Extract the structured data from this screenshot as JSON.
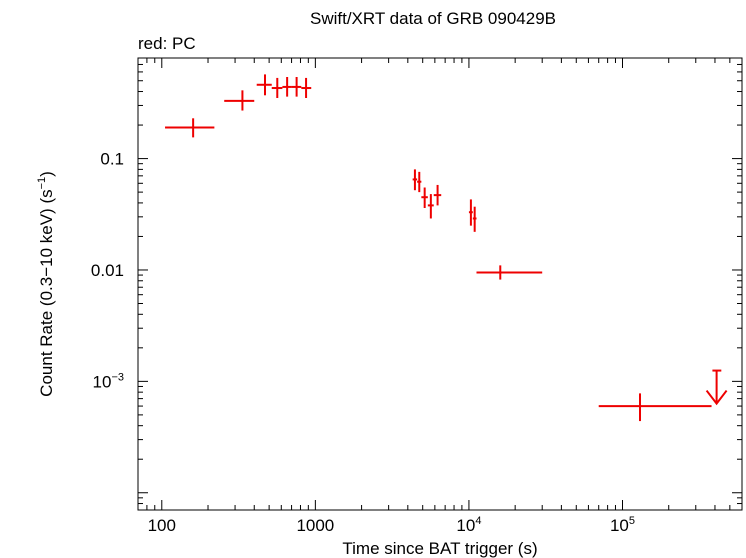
{
  "chart_data": {
    "type": "scatter",
    "title": "Swift/XRT data of GRB 090429B",
    "subtitle": "red: PC",
    "xlabel": "Time since BAT trigger (s)",
    "ylabel": "Count Rate (0.3−10 keV) (s",
    "ylabel_sup": "−1",
    "ylabel_end": ")",
    "x_scale": "log",
    "y_scale": "log",
    "xlim": [
      70,
      600000
    ],
    "ylim": [
      7e-05,
      0.8
    ],
    "x_ticks": [
      {
        "value": 100,
        "base": "100",
        "sup": ""
      },
      {
        "value": 1000,
        "base": "1000",
        "sup": ""
      },
      {
        "value": 10000,
        "base": "10",
        "sup": "4"
      },
      {
        "value": 100000,
        "base": "10",
        "sup": "5"
      }
    ],
    "y_ticks": [
      {
        "value": 0.1,
        "base": "0.1",
        "sup": ""
      },
      {
        "value": 0.01,
        "base": "0.01",
        "sup": ""
      },
      {
        "value": 0.001,
        "base": "10",
        "sup": "−3"
      }
    ],
    "series_color": "#ee0000",
    "series": [
      {
        "points": [
          {
            "x": 160,
            "xlo": 105,
            "xhi": 220,
            "y": 0.19,
            "ylo": 0.155,
            "yhi": 0.23
          },
          {
            "x": 335,
            "xlo": 255,
            "xhi": 400,
            "y": 0.33,
            "ylo": 0.27,
            "yhi": 0.41
          },
          {
            "x": 470,
            "xlo": 415,
            "xhi": 520,
            "y": 0.46,
            "ylo": 0.37,
            "yhi": 0.57
          },
          {
            "x": 565,
            "xlo": 520,
            "xhi": 610,
            "y": 0.43,
            "ylo": 0.35,
            "yhi": 0.53
          },
          {
            "x": 655,
            "xlo": 610,
            "xhi": 700,
            "y": 0.44,
            "ylo": 0.36,
            "yhi": 0.54
          },
          {
            "x": 755,
            "xlo": 700,
            "xhi": 810,
            "y": 0.44,
            "ylo": 0.36,
            "yhi": 0.54
          },
          {
            "x": 870,
            "xlo": 810,
            "xhi": 940,
            "y": 0.43,
            "ylo": 0.35,
            "yhi": 0.53
          },
          {
            "x": 4450,
            "xlo": 4300,
            "xhi": 4600,
            "y": 0.065,
            "ylo": 0.052,
            "yhi": 0.08
          },
          {
            "x": 4750,
            "xlo": 4600,
            "xhi": 4900,
            "y": 0.062,
            "ylo": 0.05,
            "yhi": 0.076
          },
          {
            "x": 5150,
            "xlo": 4900,
            "xhi": 5400,
            "y": 0.045,
            "ylo": 0.036,
            "yhi": 0.055
          },
          {
            "x": 5650,
            "xlo": 5400,
            "xhi": 5900,
            "y": 0.038,
            "ylo": 0.029,
            "yhi": 0.048
          },
          {
            "x": 6250,
            "xlo": 5900,
            "xhi": 6600,
            "y": 0.047,
            "ylo": 0.038,
            "yhi": 0.058
          },
          {
            "x": 10300,
            "xlo": 10000,
            "xhi": 10600,
            "y": 0.033,
            "ylo": 0.025,
            "yhi": 0.043
          },
          {
            "x": 10900,
            "xlo": 10600,
            "xhi": 11200,
            "y": 0.029,
            "ylo": 0.022,
            "yhi": 0.037
          },
          {
            "x": 16000,
            "xlo": 11200,
            "xhi": 30000,
            "y": 0.0095,
            "ylo": 0.0082,
            "yhi": 0.011
          },
          {
            "x": 130000,
            "xlo": 70000,
            "xhi": 380000,
            "y": 0.0006,
            "ylo": 0.00044,
            "yhi": 0.00078
          }
        ],
        "upper_limits": [
          {
            "x": 410000,
            "xlo": 385000,
            "xhi": 440000,
            "y": 0.00125
          }
        ]
      }
    ]
  }
}
